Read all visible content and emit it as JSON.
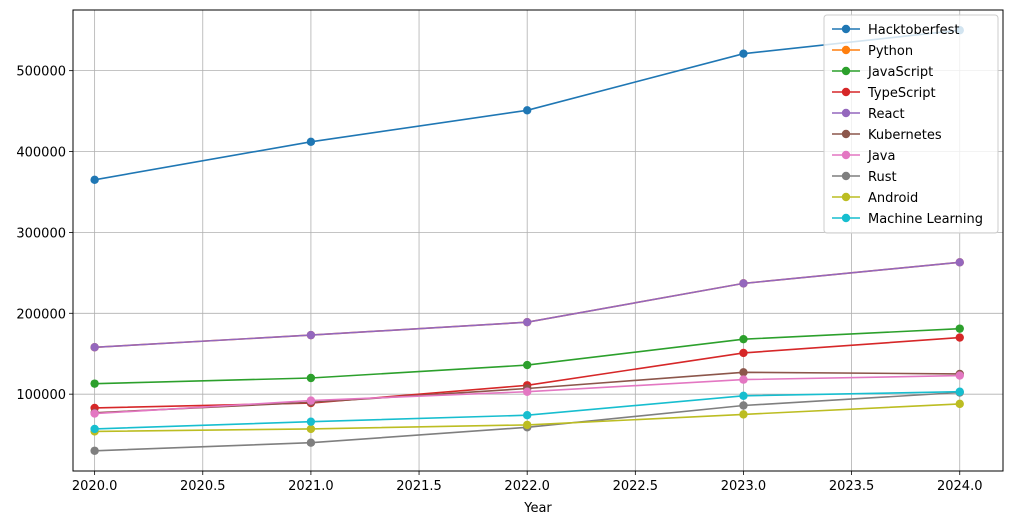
{
  "chart_data": {
    "type": "line",
    "title": "",
    "xlabel": "Year",
    "ylabel": "",
    "x": [
      2020,
      2021,
      2022,
      2023,
      2024
    ],
    "xlim": [
      2019.9,
      2024.2
    ],
    "ylim": [
      5000,
      575000
    ],
    "xticks": [
      2020.0,
      2020.5,
      2021.0,
      2021.5,
      2022.0,
      2022.5,
      2023.0,
      2023.5,
      2024.0
    ],
    "xtick_labels": [
      "2020.0",
      "2020.5",
      "2021.0",
      "2021.5",
      "2022.0",
      "2022.5",
      "2023.0",
      "2023.5",
      "2024.0"
    ],
    "yticks": [
      100000,
      200000,
      300000,
      400000,
      500000
    ],
    "ytick_labels": [
      "100000",
      "200000",
      "300000",
      "400000",
      "500000"
    ],
    "grid": true,
    "legend_position": "top-right",
    "series": [
      {
        "name": "Hacktoberfest",
        "color": "#1f77b4",
        "values": [
          365000,
          412000,
          451000,
          521000,
          550000
        ]
      },
      {
        "name": "Python",
        "color": "#ff7f0e",
        "values": [
          158000,
          173000,
          189000,
          237000,
          263000
        ]
      },
      {
        "name": "JavaScript",
        "color": "#2ca02c",
        "values": [
          113000,
          120000,
          136000,
          168000,
          181000
        ]
      },
      {
        "name": "TypeScript",
        "color": "#d62728",
        "values": [
          83000,
          89000,
          111000,
          151000,
          170000
        ]
      },
      {
        "name": "React",
        "color": "#9467bd",
        "values": [
          158000,
          173000,
          189000,
          237000,
          263000
        ]
      },
      {
        "name": "Kubernetes",
        "color": "#8c564b",
        "values": [
          77000,
          90000,
          107000,
          127000,
          125000
        ]
      },
      {
        "name": "Java",
        "color": "#e377c2",
        "values": [
          76000,
          92000,
          103000,
          118000,
          123000
        ]
      },
      {
        "name": "Rust",
        "color": "#7f7f7f",
        "values": [
          30000,
          40000,
          59000,
          86000,
          102000
        ]
      },
      {
        "name": "Android",
        "color": "#bcbd22",
        "values": [
          54000,
          57000,
          62000,
          75000,
          88000
        ]
      },
      {
        "name": "Machine Learning",
        "color": "#17becf",
        "values": [
          57000,
          66000,
          74000,
          98000,
          103000
        ]
      }
    ]
  }
}
